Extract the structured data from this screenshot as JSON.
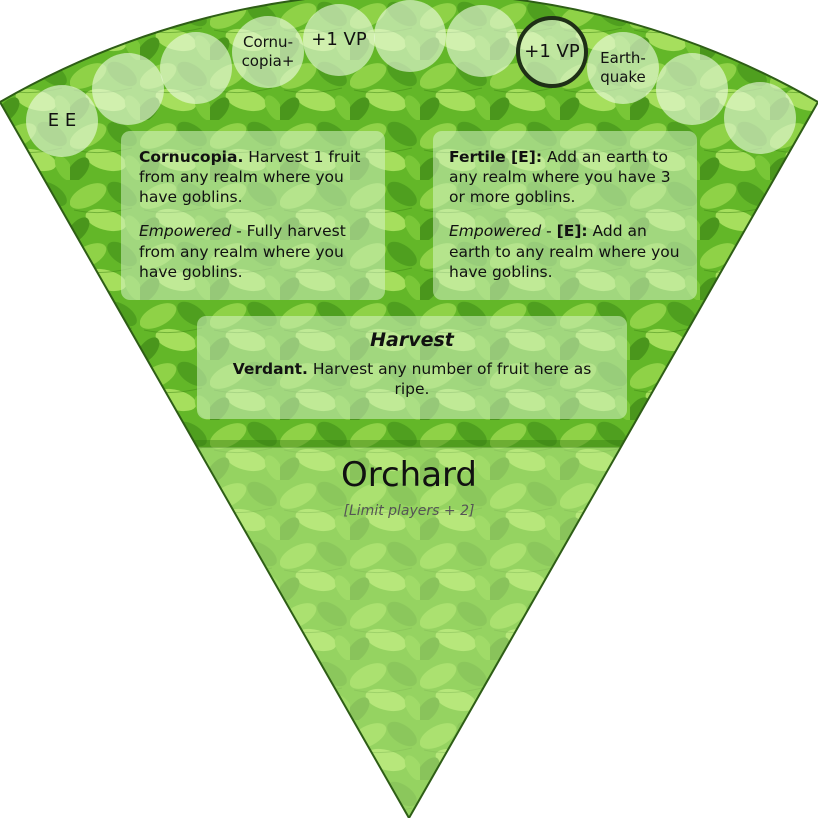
{
  "realm": {
    "name": "Orchard",
    "limit": "[Limit players + 2]"
  },
  "colors": {
    "leaf_light": "#9fdc57",
    "leaf_mid": "#6cc22c",
    "leaf_dark": "#3f8f18",
    "slot_fill": "#ebfae1",
    "slot_selected_border": "#1f2f17"
  },
  "track_slots": [
    {
      "label": "E E"
    },
    {
      "label": ""
    },
    {
      "label": ""
    },
    {
      "label": "Cornu-\ncopia+"
    },
    {
      "label": "+1 VP"
    },
    {
      "label": ""
    },
    {
      "label": ""
    },
    {
      "label": "+1 VP",
      "selected": true
    },
    {
      "label": "Earth-\nquake"
    },
    {
      "label": ""
    },
    {
      "label": ""
    }
  ],
  "abilities": {
    "left": {
      "name": "Cornucopia.",
      "text": " Harvest 1 fruit from any realm where you have goblins.",
      "empowered_label": "Empowered",
      "empowered_text": " - Fully harvest from any realm where you have goblins."
    },
    "right": {
      "name": "Fertile [E]:",
      "text": " Add an earth to any realm where you have 3 or more goblins.",
      "empowered_label": "Empowered",
      "empowered_sep": " - ",
      "empowered_code": "[E]:",
      "empowered_text": " Add an earth to any realm where you have goblins."
    }
  },
  "harvest": {
    "title": "Harvest",
    "name": "Verdant.",
    "text": " Harvest any number of fruit here as ripe."
  }
}
